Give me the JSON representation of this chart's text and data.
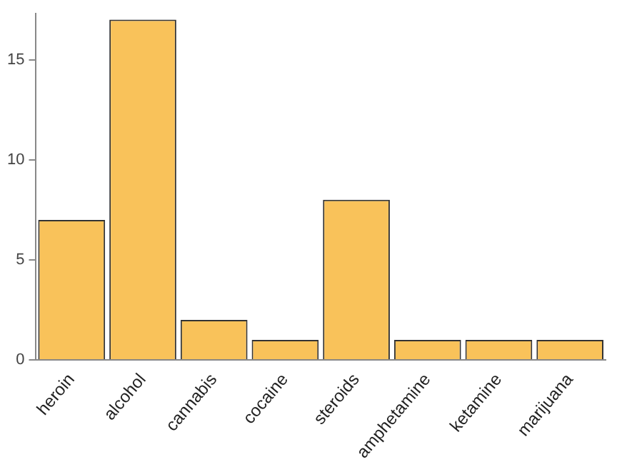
{
  "chart_data": {
    "type": "bar",
    "categories": [
      "heroin",
      "alcohol",
      "cannabis",
      "cocaine",
      "steroids",
      "amphetamine",
      "ketamine",
      "marijuana"
    ],
    "values": [
      7,
      17,
      2,
      1,
      8,
      1,
      1,
      1
    ],
    "color": "#f9c25a",
    "ylim": [
      0,
      17.3
    ],
    "yticks": [
      0,
      5,
      10,
      15
    ],
    "grid": false,
    "legend": false
  }
}
